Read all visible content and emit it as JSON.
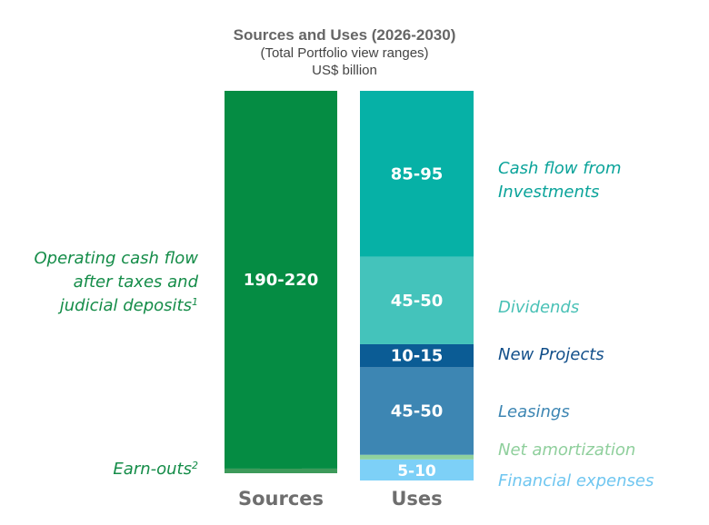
{
  "chart_data": {
    "type": "bar",
    "title": "Sources and Uses (2026-2030)",
    "subtitle": "(Total Portfolio view ranges)",
    "unit": "US$ billion",
    "categories": [
      "Sources",
      "Uses"
    ],
    "sources": [
      {
        "name": "Earn-outs",
        "footnote": "2",
        "range": "0-5",
        "value": 2.5,
        "color": "#3d9a5a"
      },
      {
        "name": "Operating cash flow after taxes and judicial deposits",
        "lines": [
          "Operating cash flow",
          "after taxes and",
          "judicial deposits"
        ],
        "footnote": "1",
        "range": "190-220",
        "value": 205,
        "color": "#058c43"
      }
    ],
    "uses": [
      {
        "name": "Financial expenses",
        "range": "5-10",
        "value": 7.5,
        "color": "#7dd0f7"
      },
      {
        "name": "Net amortization",
        "range": "0-5",
        "value": 2.5,
        "color": "#8fd19e"
      },
      {
        "name": "Leasings",
        "range": "45-50",
        "value": 47.5,
        "color": "#3d86b3"
      },
      {
        "name": "New Projects",
        "range": "10-15",
        "value": 12.5,
        "color": "#0b5c95"
      },
      {
        "name": "Dividends",
        "range": "45-50",
        "value": 47.5,
        "color": "#44c3bb"
      },
      {
        "name": "Cash flow from Investments",
        "lines": [
          "Cash flow from",
          "Investments"
        ],
        "range": "85-95",
        "value": 90,
        "color": "#06b1a6"
      }
    ],
    "label_colors": {
      "Operating cash flow after taxes and judicial deposits": "#148c48",
      "Earn-outs": "#148c48",
      "Cash flow from Investments": "#0aa39a",
      "Dividends": "#49c1b6",
      "New Projects": "#124f8a",
      "Leasings": "#3d86b3",
      "Net amortization": "#8fcf9c",
      "Financial expenses": "#6fc6f0"
    }
  }
}
